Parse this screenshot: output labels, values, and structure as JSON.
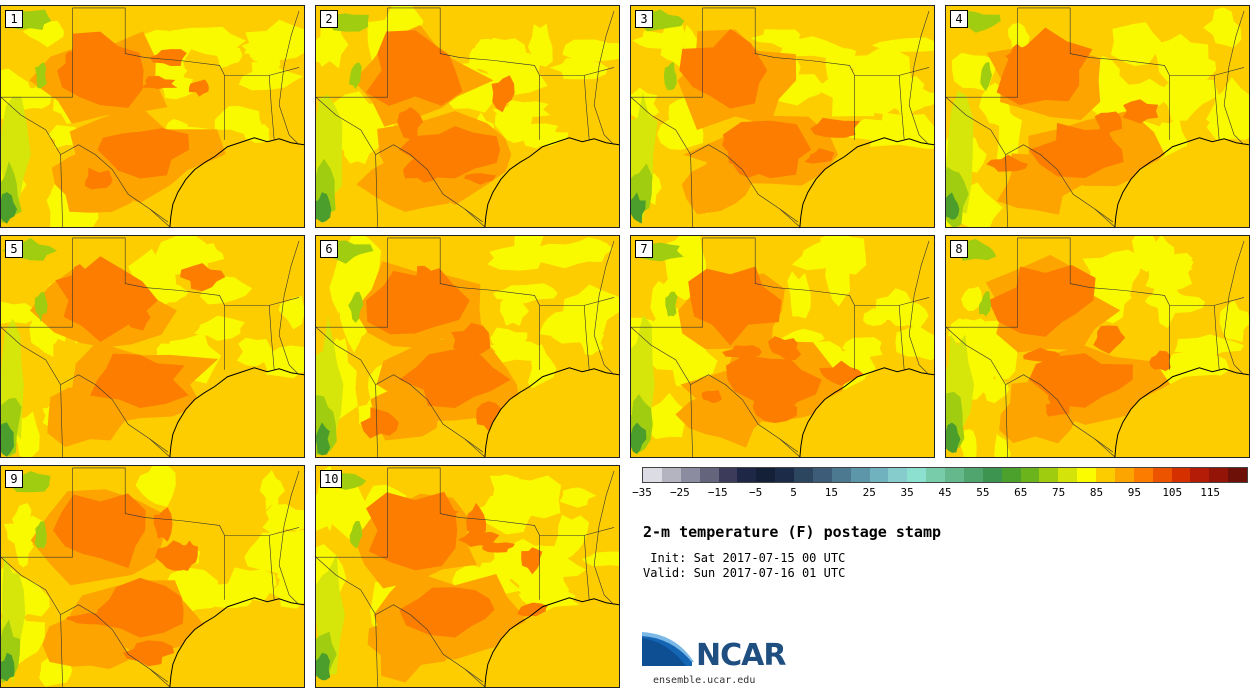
{
  "title": "2-m temperature (F) postage stamp",
  "init_line": " Init: Sat 2017-07-15 00 UTC",
  "valid_line": "Valid: Sun 2017-07-16 01 UTC",
  "members": [
    "1",
    "2",
    "3",
    "4",
    "5",
    "6",
    "7",
    "8",
    "9",
    "10"
  ],
  "colorbar": {
    "ticks": [
      "−35",
      "−25",
      "−15",
      "−5",
      "5",
      "15",
      "25",
      "35",
      "45",
      "55",
      "65",
      "75",
      "85",
      "95",
      "105",
      "115"
    ],
    "colors": [
      "#dcdce4",
      "#b4b4c0",
      "#8c8ca0",
      "#64647c",
      "#3c3c5a",
      "#1e2846",
      "#142038",
      "#1c2c48",
      "#2c4660",
      "#3c5c78",
      "#4c7890",
      "#5c96a8",
      "#70b2be",
      "#86cccc",
      "#8ce0d0",
      "#78ccaa",
      "#64b88c",
      "#50a46e",
      "#3c9450",
      "#4ca02c",
      "#6cb41c",
      "#a0cc10",
      "#d4e40a",
      "#fcfc00",
      "#fccc00",
      "#fca400",
      "#fc7c00",
      "#ec5400",
      "#d43000",
      "#b41c08",
      "#941408",
      "#6c1008"
    ]
  },
  "logo": {
    "text": "NCAR",
    "url": "ensemble.ucar.edu"
  },
  "map_colors": {
    "ocean": "#fdcd00",
    "base": "#fdcd00",
    "warm": "#fda400",
    "hot": "#fc7d00",
    "cool": "#f9f900",
    "cooler": "#d6e50a",
    "green": "#a0cd10",
    "dark_green": "#4c9e2c"
  }
}
